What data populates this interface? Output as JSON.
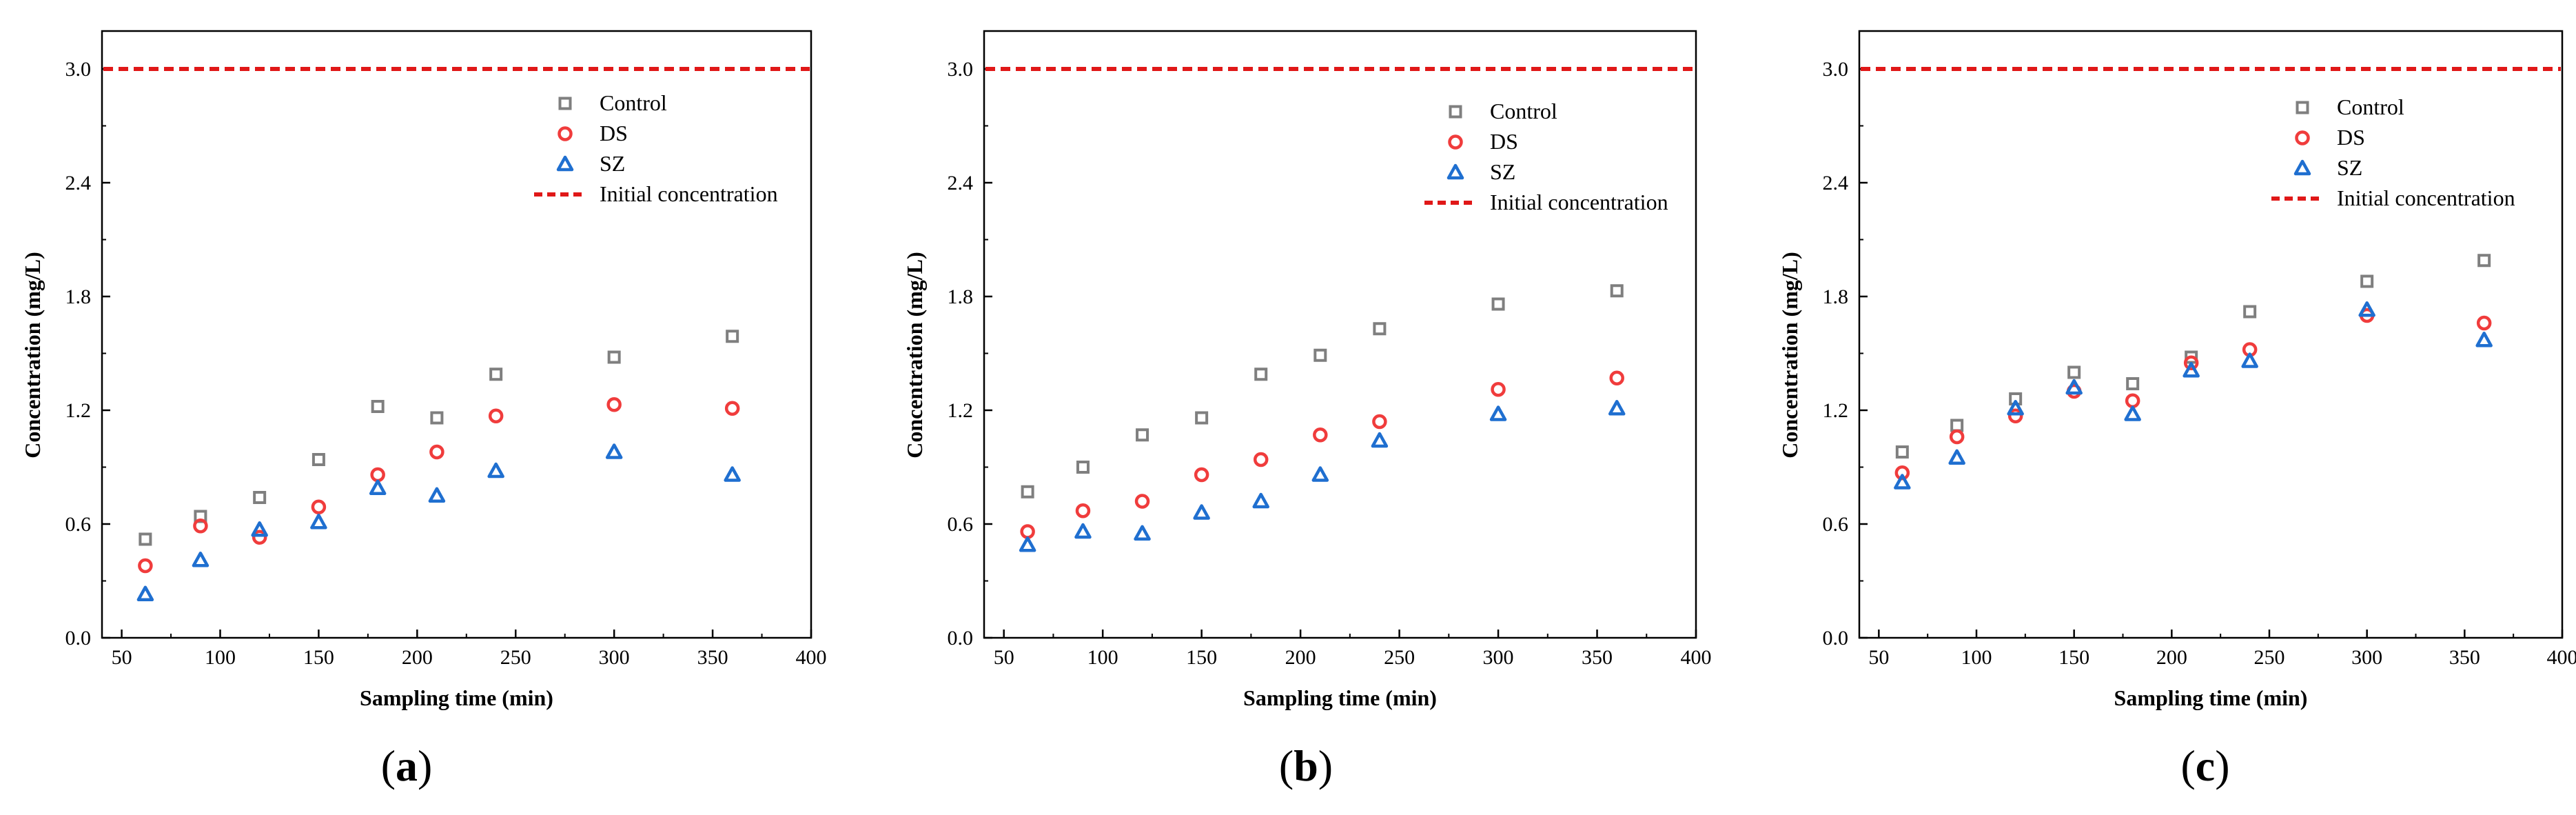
{
  "colors": {
    "control": "#7f7f7f",
    "ds": "#f03c3c",
    "sz": "#1f6fd0",
    "initial_line": "#e01818",
    "axis": "#000000"
  },
  "chart_data": [
    {
      "type": "scatter",
      "panel_label": "a",
      "xlabel": "Sampling time (min)",
      "ylabel": "Concentration (mg/L)",
      "xlim": [
        40,
        400
      ],
      "ylim": [
        0,
        3.2
      ],
      "xticks": [
        50,
        100,
        150,
        200,
        250,
        300,
        350,
        400
      ],
      "yticks": [
        0.0,
        0.6,
        1.2,
        1.8,
        2.4,
        3.0
      ],
      "ytick_labels": [
        "0.0",
        "0.6",
        "1.2",
        "1.8",
        "2.4",
        "3.0"
      ],
      "x": [
        62,
        90,
        120,
        150,
        180,
        210,
        240,
        300,
        360
      ],
      "series": [
        {
          "name": "Control",
          "marker": "square",
          "values": [
            0.52,
            0.64,
            0.74,
            0.94,
            1.22,
            1.16,
            1.39,
            1.48,
            1.59
          ]
        },
        {
          "name": "DS",
          "marker": "circle",
          "values": [
            0.38,
            0.59,
            0.53,
            0.69,
            0.86,
            0.98,
            1.17,
            1.23,
            1.21
          ]
        },
        {
          "name": "SZ",
          "marker": "triangle",
          "values": [
            0.23,
            0.41,
            0.57,
            0.61,
            0.79,
            0.75,
            0.88,
            0.98,
            0.86
          ]
        }
      ],
      "reference_line": {
        "name": "Initial concentration",
        "value": 3.0
      },
      "legend": "top-right",
      "grid": false
    },
    {
      "type": "scatter",
      "panel_label": "b",
      "xlabel": "Sampling time (min)",
      "ylabel": "Concentration (mg/L)",
      "xlim": [
        40,
        400
      ],
      "ylim": [
        0,
        3.2
      ],
      "xticks": [
        50,
        100,
        150,
        200,
        250,
        300,
        350,
        400
      ],
      "yticks": [
        0.0,
        0.6,
        1.2,
        1.8,
        2.4,
        3.0
      ],
      "ytick_labels": [
        "0.0",
        "0.6",
        "1.2",
        "1.8",
        "2.4",
        "3.0"
      ],
      "x": [
        62,
        90,
        120,
        150,
        180,
        210,
        240,
        300,
        360
      ],
      "series": [
        {
          "name": "Control",
          "marker": "square",
          "values": [
            0.77,
            0.9,
            1.07,
            1.16,
            1.39,
            1.49,
            1.63,
            1.76,
            1.83
          ]
        },
        {
          "name": "DS",
          "marker": "circle",
          "values": [
            0.56,
            0.67,
            0.72,
            0.86,
            0.94,
            1.07,
            1.14,
            1.31,
            1.37
          ]
        },
        {
          "name": "SZ",
          "marker": "triangle",
          "values": [
            0.49,
            0.56,
            0.55,
            0.66,
            0.72,
            0.86,
            1.04,
            1.18,
            1.21
          ]
        }
      ],
      "reference_line": {
        "name": "Initial concentration",
        "value": 3.0
      },
      "legend": "top-right",
      "grid": false
    },
    {
      "type": "scatter",
      "panel_label": "c",
      "xlabel": "Sampling time (min)",
      "ylabel": "Concentration (mg/L)",
      "xlim": [
        40,
        400
      ],
      "ylim": [
        0,
        3.2
      ],
      "xticks": [
        50,
        100,
        150,
        200,
        250,
        300,
        350,
        400
      ],
      "yticks": [
        0.0,
        0.6,
        1.2,
        1.8,
        2.4,
        3.0
      ],
      "ytick_labels": [
        "0.0",
        "0.6",
        "1.2",
        "1.8",
        "2.4",
        "3.0"
      ],
      "x": [
        62,
        90,
        120,
        150,
        180,
        210,
        240,
        300,
        360
      ],
      "series": [
        {
          "name": "Control",
          "marker": "square",
          "values": [
            0.98,
            1.12,
            1.26,
            1.4,
            1.34,
            1.48,
            1.72,
            1.88,
            1.99
          ]
        },
        {
          "name": "DS",
          "marker": "circle",
          "values": [
            0.87,
            1.06,
            1.17,
            1.3,
            1.25,
            1.45,
            1.52,
            1.7,
            1.66
          ]
        },
        {
          "name": "SZ",
          "marker": "triangle",
          "values": [
            0.82,
            0.95,
            1.21,
            1.32,
            1.18,
            1.41,
            1.46,
            1.73,
            1.57
          ]
        }
      ],
      "reference_line": {
        "name": "Initial concentration",
        "value": 3.0
      },
      "legend": "top-right",
      "grid": false
    }
  ]
}
